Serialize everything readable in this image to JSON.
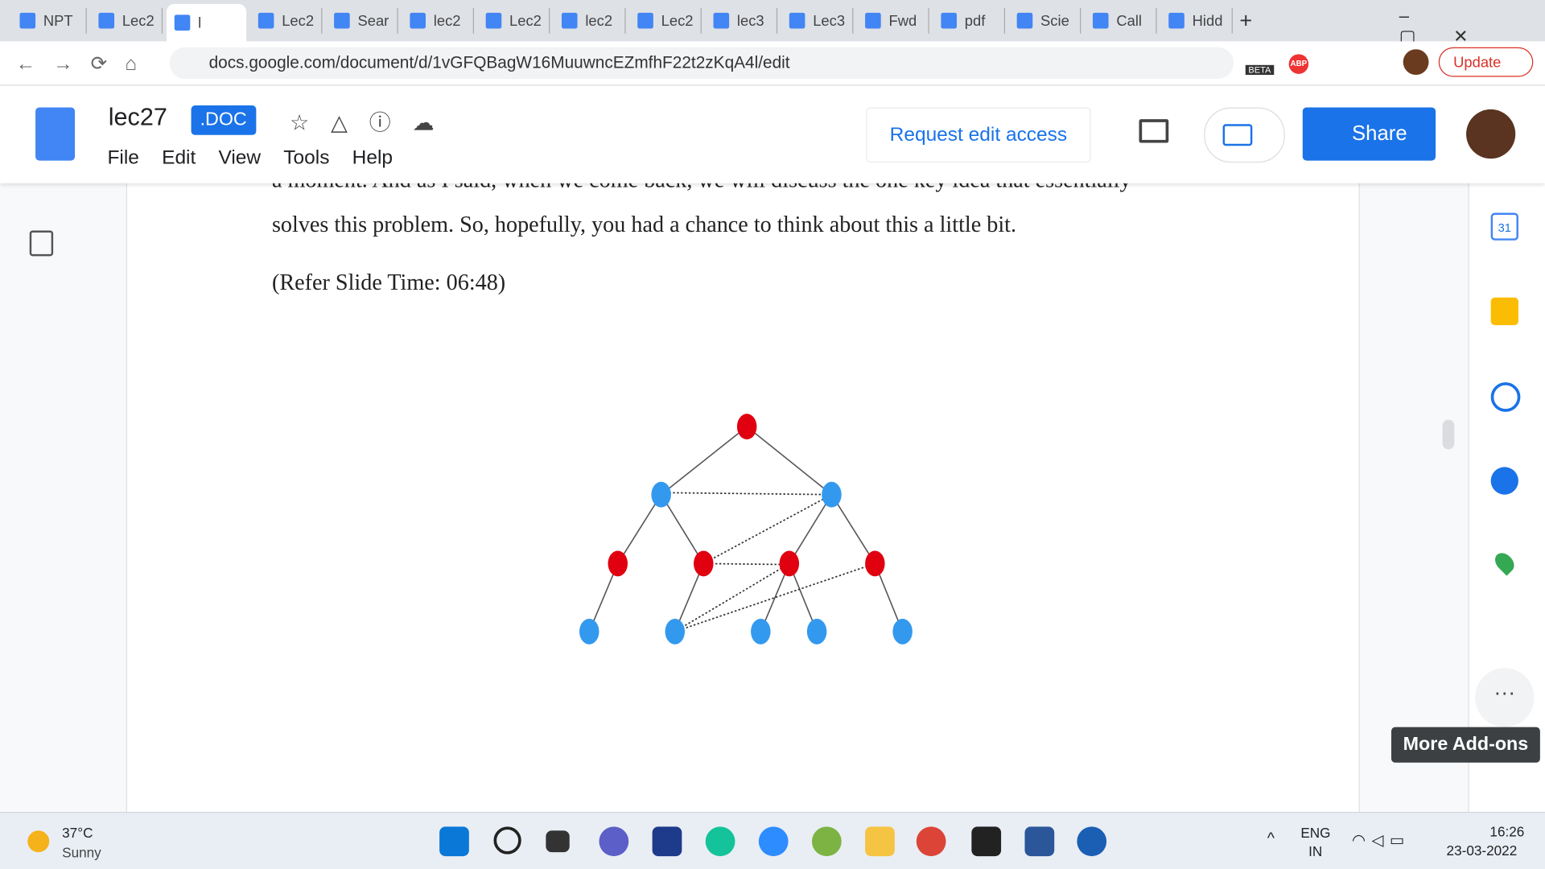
{
  "browser": {
    "tabs": [
      "NPT",
      "Lec2",
      "l",
      "Lec2",
      "Sear",
      "lec2",
      "Lec2",
      "lec2",
      "Lec2",
      "lec3",
      "Lec3",
      "Fwd",
      "pdf",
      "Scie",
      "Call",
      "Hidd"
    ],
    "url": "docs.google.com/document/d/1vGFQBagW16MuuwncEZmfhF22t2zKqA4l/edit",
    "beta_badge": "BETA",
    "abp_badge": "ABP",
    "update_button": "Update"
  },
  "doc": {
    "title": "lec27",
    "badge": ".DOC",
    "menu": [
      "File",
      "Edit",
      "View",
      "Tools",
      "Help"
    ],
    "request_edit": "Request edit access",
    "share": "Share"
  },
  "content": {
    "partial_line": "a moment. And as I said, when we come back, we will discuss the one key idea that essentially",
    "paragraph": "solves this problem. So, hopefully, you had a chance to think about this a little bit.",
    "slide_ref": "(Refer Slide Time: 06:48)"
  },
  "side_panel": {
    "calendar_day": "31",
    "tooltip": "More Add-ons"
  },
  "taskbar": {
    "temperature": "37°C",
    "weather": "Sunny",
    "language": "ENG",
    "region": "IN",
    "time": "16:26",
    "date": "23-03-2022"
  }
}
